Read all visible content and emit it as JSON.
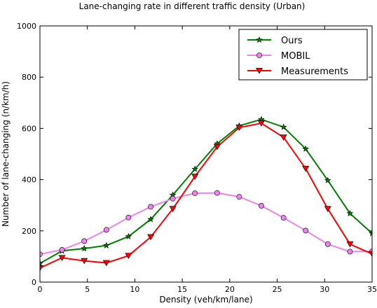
{
  "chart_data": {
    "type": "line",
    "title": "Lane-changing rate in different traffic density (Urban)",
    "xlabel": "Density (veh/km/lane)",
    "ylabel": "Number of lane-changing (n/km/h)",
    "xlim": [
      0,
      35
    ],
    "ylim": [
      0,
      1000
    ],
    "xticks": [
      0,
      5,
      10,
      15,
      20,
      25,
      30,
      35
    ],
    "yticks": [
      0,
      200,
      400,
      600,
      800,
      1000
    ],
    "grid": false,
    "legend_position": "top-right",
    "x": [
      0,
      2.33,
      4.67,
      7.0,
      9.33,
      11.67,
      14.0,
      16.33,
      18.67,
      21.0,
      23.33,
      25.67,
      28.0,
      30.33,
      32.67,
      35.0
    ],
    "series": [
      {
        "name": "Ours",
        "color": "#007f00",
        "marker": "star",
        "values": [
          73,
          122,
          131,
          143,
          178,
          245,
          340,
          441,
          540,
          610,
          635,
          605,
          520,
          397,
          268,
          190
        ]
      },
      {
        "name": "MOBIL",
        "color": "#ee82ee",
        "marker": "circle",
        "values": [
          109,
          126,
          160,
          204,
          252,
          294,
          326,
          347,
          348,
          333,
          298,
          251,
          201,
          148,
          119,
          120
        ]
      },
      {
        "name": "Measurements",
        "color": "#ff0000",
        "marker": "triangle-down",
        "values": [
          55,
          95,
          83,
          75,
          103,
          176,
          286,
          412,
          528,
          603,
          620,
          565,
          443,
          286,
          148,
          110
        ]
      }
    ]
  }
}
